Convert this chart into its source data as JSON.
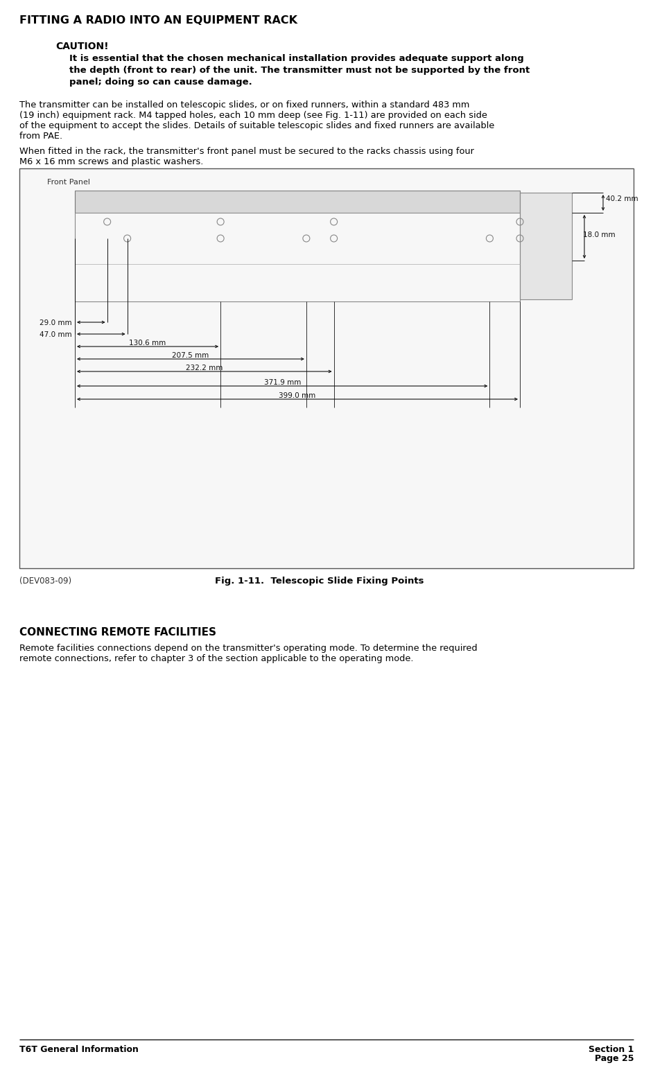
{
  "title": "FITTING A RADIO INTO AN EQUIPMENT RACK",
  "caution_label": "CAUTION!",
  "caution_line1": "It is essential that the chosen mechanical installation provides adequate support along",
  "caution_line2": "the depth (front to rear) of the unit. The transmitter must not be supported by the front",
  "caution_line3": "panel; doing so can cause damage.",
  "para1_line1": "The transmitter can be installed on telescopic slides, or on fixed runners, within a standard 483 mm",
  "para1_line2": "(19 inch) equipment rack. M4 tapped holes, each 10 mm deep (see Fig. 1-11) are provided on each side",
  "para1_line3": "of the equipment to accept the slides. Details of suitable telescopic slides and fixed runners are available",
  "para1_line4": "from PAE.",
  "para2_line1": "When fitted in the rack, the transmitter's front panel must be secured to the racks chassis using four",
  "para2_line2": "M6 x 16 mm screws and plastic washers.",
  "fig_label_left": "(DEV083-09)",
  "fig_label_center": "Fig. 1-11.  Telescopic Slide Fixing Points",
  "section2_title": "CONNECTING REMOTE FACILITIES",
  "section2_line1": "Remote facilities connections depend on the transmitter's operating mode. To determine the required",
  "section2_line2": "remote connections, refer to chapter 3 of the section applicable to the operating mode.",
  "footer_left": "T6T General Information",
  "footer_right1": "Section 1",
  "footer_right2": "Page 25",
  "front_panel_label": "Front Panel",
  "dim_130_6": "130.6 mm",
  "dim_207_5": "207.5 mm",
  "dim_232_2": "232.2 mm",
  "dim_371_9": "371.9 mm",
  "dim_399_0": "399.0 mm",
  "dim_29_0": "29.0 mm",
  "dim_47_0": "47.0 mm",
  "dim_18_0": "18.0 mm",
  "dim_40_2": "40.2 mm"
}
